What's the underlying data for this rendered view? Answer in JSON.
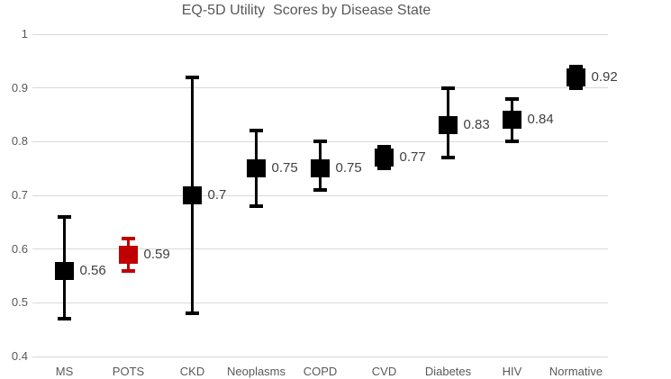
{
  "chart_data": {
    "type": "scatter",
    "title": "EQ-5D Utility  Scores by Disease State",
    "xlabel": "",
    "ylabel": "",
    "ylim": [
      0.4,
      1.0
    ],
    "ytick_labels": [
      "1",
      "0.9",
      "0.8",
      "0.7",
      "0.6",
      "0.5",
      "0.4"
    ],
    "grid": true,
    "legend": false,
    "categories": [
      "MS",
      "POTS",
      "CKD",
      "Neoplasms",
      "COPD",
      "CVD",
      "Diabetes",
      "HIV",
      "Normative"
    ],
    "series": [
      {
        "name": "EQ-5D utility score",
        "marker": "square",
        "points": [
          {
            "category": "MS",
            "value": 0.56,
            "label": "0.56",
            "ci_low": 0.47,
            "ci_high": 0.66,
            "color": "#000000"
          },
          {
            "category": "POTS",
            "value": 0.59,
            "label": "0.59",
            "ci_low": 0.56,
            "ci_high": 0.62,
            "color": "#C00000"
          },
          {
            "category": "CKD",
            "value": 0.7,
            "label": "0.7",
            "ci_low": 0.48,
            "ci_high": 0.92,
            "color": "#000000"
          },
          {
            "category": "Neoplasms",
            "value": 0.75,
            "label": "0.75",
            "ci_low": 0.68,
            "ci_high": 0.82,
            "color": "#000000"
          },
          {
            "category": "COPD",
            "value": 0.75,
            "label": "0.75",
            "ci_low": 0.71,
            "ci_high": 0.8,
            "color": "#000000"
          },
          {
            "category": "CVD",
            "value": 0.77,
            "label": "0.77",
            "ci_low": 0.75,
            "ci_high": 0.79,
            "color": "#000000"
          },
          {
            "category": "Diabetes",
            "value": 0.83,
            "label": "0.83",
            "ci_low": 0.77,
            "ci_high": 0.9,
            "color": "#000000"
          },
          {
            "category": "HIV",
            "value": 0.84,
            "label": "0.84",
            "ci_low": 0.8,
            "ci_high": 0.88,
            "color": "#000000"
          },
          {
            "category": "Normative",
            "value": 0.92,
            "label": "0.92",
            "ci_low": 0.9,
            "ci_high": 0.94,
            "color": "#000000"
          }
        ]
      }
    ],
    "colors": {
      "default_marker": "#000000",
      "highlight_marker": "#C00000",
      "gridline": "#D9D9D9",
      "title_text": "#595959",
      "axis_text": "#595959",
      "data_label_text": "#404040",
      "background": "#FFFFFF"
    }
  }
}
